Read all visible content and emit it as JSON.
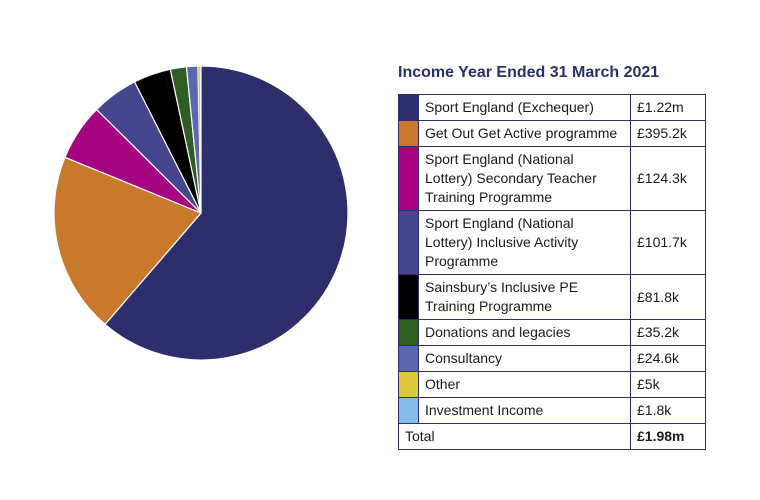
{
  "chart_data": {
    "type": "pie",
    "title": "Income Year Ended 31 March 2021",
    "unit": "£",
    "slices": [
      {
        "label": "Sport England (Exchequer)",
        "display": "£1.22m",
        "value": 1220000,
        "color": "#2d2e6b"
      },
      {
        "label": "Get Out Get Active programme",
        "display": "£395.2k",
        "value": 395200,
        "color": "#c8792b"
      },
      {
        "label": "Sport England (National Lottery) Secondary Teacher Training Programme",
        "display": "£124.3k",
        "value": 124300,
        "color": "#a5037f"
      },
      {
        "label": "Sport England (National Lottery) Inclusive Activity Programme",
        "display": "£101.7k",
        "value": 101700,
        "color": "#45468e"
      },
      {
        "label": "Sainsbury’s Inclusive PE Training Programme",
        "display": "£81.8k",
        "value": 81800,
        "color": "#000000"
      },
      {
        "label": "Donations and legacies",
        "display": "£35.2k",
        "value": 35200,
        "color": "#2f5e25"
      },
      {
        "label": "Consultancy",
        "display": "£24.6k",
        "value": 24600,
        "color": "#5b68b0"
      },
      {
        "label": "Other",
        "display": "£5k",
        "value": 5000,
        "color": "#dcc83c"
      },
      {
        "label": "Investment Income",
        "display": "£1.8k",
        "value": 1800,
        "color": "#84bde8"
      }
    ],
    "total": {
      "label": "Total",
      "display": "£1.98m"
    }
  }
}
